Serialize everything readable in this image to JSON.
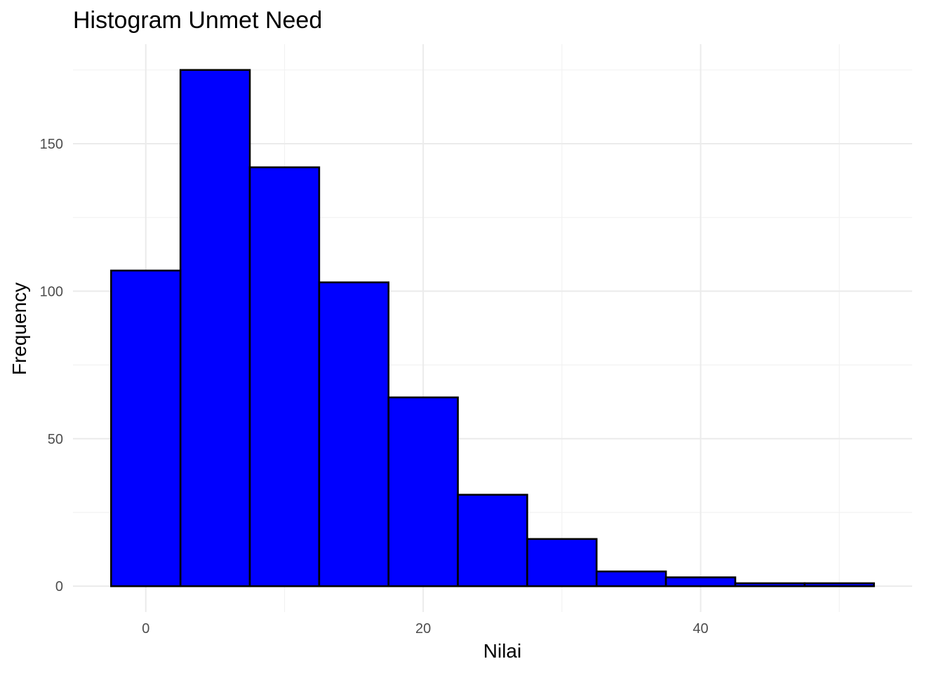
{
  "chart_data": {
    "type": "bar",
    "title": "Histogram Unmet Need",
    "xlabel": "Nilai",
    "ylabel": "Frequency",
    "bin_width": 5,
    "bins": [
      {
        "x0": -2.5,
        "x1": 2.5,
        "count": 107
      },
      {
        "x0": 2.5,
        "x1": 7.5,
        "count": 175
      },
      {
        "x0": 7.5,
        "x1": 12.5,
        "count": 142
      },
      {
        "x0": 12.5,
        "x1": 17.5,
        "count": 103
      },
      {
        "x0": 17.5,
        "x1": 22.5,
        "count": 64
      },
      {
        "x0": 22.5,
        "x1": 27.5,
        "count": 31
      },
      {
        "x0": 27.5,
        "x1": 32.5,
        "count": 16
      },
      {
        "x0": 32.5,
        "x1": 37.5,
        "count": 5
      },
      {
        "x0": 37.5,
        "x1": 42.5,
        "count": 3
      },
      {
        "x0": 42.5,
        "x1": 47.5,
        "count": 1
      },
      {
        "x0": 47.5,
        "x1": 52.5,
        "count": 1
      }
    ],
    "xlim": [
      -5.25,
      55.25
    ],
    "ylim": [
      -8.75,
      183.75
    ],
    "x_ticks": [
      0,
      20,
      40
    ],
    "x_tick_labels": [
      "0",
      "20",
      "40"
    ],
    "x_minor_ticks": [
      10,
      30,
      50
    ],
    "y_ticks": [
      0,
      50,
      100,
      150
    ],
    "y_tick_labels": [
      "0",
      "50",
      "100",
      "150"
    ],
    "y_minor_ticks": [
      25,
      75,
      125,
      175
    ],
    "fill_color": "#0000ff",
    "outline_color": "#000000",
    "grid": true,
    "legend": "none"
  }
}
